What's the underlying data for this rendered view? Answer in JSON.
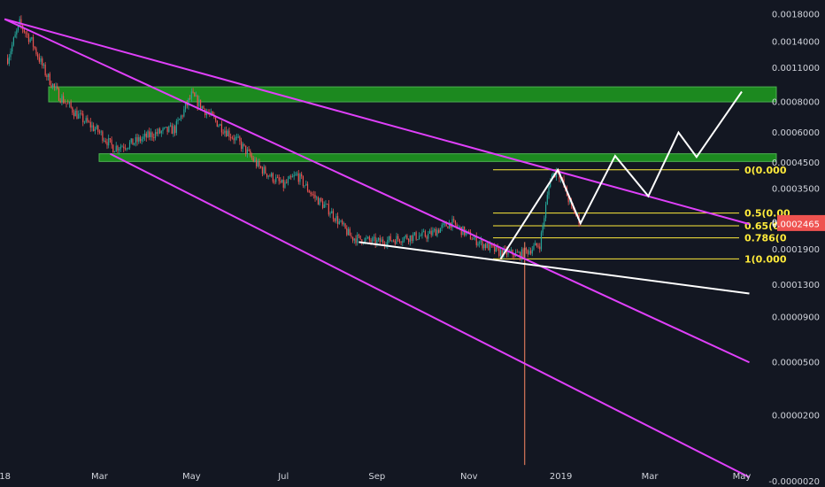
{
  "colors": {
    "background": "#131722",
    "up": "#26a69a",
    "down": "#ef5350",
    "channel": "#e040fb",
    "zone_fill": "#1f9e1f",
    "zone_edge": "#4caf50",
    "fib": "#ffeb3b",
    "projection": "#ffffff",
    "support": "#ffffff",
    "wick": "#ff8a65",
    "tag": "#ef5350",
    "axis_text": "#d1d4dc"
  },
  "chart_data": {
    "type": "candlestick",
    "scale": "log",
    "y_ticks": [
      "0.0018000",
      "0.0014000",
      "0.0011000",
      "0.0008000",
      "0.0006000",
      "0.0004500",
      "0.0003500",
      "0.0002509",
      "0.0002465",
      "0.0001900",
      "0.0001300",
      "0.0000900",
      "0.0000500",
      "0.0000200",
      "-0.0000020"
    ],
    "x_ticks": [
      {
        "label": "2018",
        "date": "2018-01-01"
      },
      {
        "label": "Mar",
        "date": "2018-03-01"
      },
      {
        "label": "May",
        "date": "2018-05-01"
      },
      {
        "label": "Jul",
        "date": "2018-07-01"
      },
      {
        "label": "Sep",
        "date": "2018-09-01"
      },
      {
        "label": "Nov",
        "date": "2018-11-01"
      },
      {
        "label": "2019",
        "date": "2019-01-01"
      },
      {
        "label": "Mar",
        "date": "2019-03-01"
      },
      {
        "label": "May",
        "date": "2019-05-01"
      }
    ],
    "price_path": [
      [
        "2017-12-30",
        0.0012
      ],
      [
        "2018-01-07",
        0.00165
      ],
      [
        "2018-01-15",
        0.0014
      ],
      [
        "2018-01-24",
        0.00105
      ],
      [
        "2018-02-02",
        0.00085
      ],
      [
        "2018-02-15",
        0.0007
      ],
      [
        "2018-03-01",
        0.0006
      ],
      [
        "2018-03-10",
        0.00052
      ],
      [
        "2018-03-22",
        0.00054
      ],
      [
        "2018-04-05",
        0.00059
      ],
      [
        "2018-04-20",
        0.00062
      ],
      [
        "2018-05-01",
        0.00085
      ],
      [
        "2018-05-10",
        0.00074
      ],
      [
        "2018-05-20",
        0.00064
      ],
      [
        "2018-06-01",
        0.00055
      ],
      [
        "2018-06-15",
        0.00043
      ],
      [
        "2018-07-01",
        0.00036
      ],
      [
        "2018-07-10",
        0.0004
      ],
      [
        "2018-07-20",
        0.00033
      ],
      [
        "2018-08-01",
        0.00028
      ],
      [
        "2018-08-15",
        0.000215
      ],
      [
        "2018-09-01",
        0.000205
      ],
      [
        "2018-09-20",
        0.000215
      ],
      [
        "2018-10-05",
        0.00022
      ],
      [
        "2018-10-20",
        0.00025
      ],
      [
        "2018-11-05",
        0.00021
      ],
      [
        "2018-11-20",
        0.000185
      ],
      [
        "2018-12-05",
        0.00018
      ],
      [
        "2018-12-18",
        0.0002
      ],
      [
        "2018-12-25",
        0.00039
      ],
      [
        "2018-12-30",
        0.00042
      ],
      [
        "2019-01-08",
        0.00029
      ],
      [
        "2019-01-14",
        0.0002509
      ]
    ],
    "resistance_zones": [
      {
        "top": 0.00092,
        "bottom": 0.0008
      },
      {
        "top": 0.00049,
        "bottom": 0.000455
      }
    ],
    "fib_levels": [
      {
        "label": "0(0.000",
        "price": 0.00042
      },
      {
        "label": "0.5(0.00",
        "price": 0.000275
      },
      {
        "label": "0.65(0.0",
        "price": 0.000242
      },
      {
        "label": "0.786(0",
        "price": 0.000214
      },
      {
        "label": "1(0.000",
        "price": 0.000172
      }
    ],
    "channel_lines": [
      {
        "from": [
          "2017-12-28",
          0.00172
        ],
        "to": [
          "2019-05-06",
          0.000246
        ]
      },
      {
        "from": [
          "2017-12-28",
          0.00172
        ],
        "to": [
          "2019-05-06",
          5e-05
        ]
      },
      {
        "from": [
          "2018-03-08",
          0.00049
        ],
        "to": [
          "2019-05-06",
          -1e-06
        ]
      }
    ],
    "support_line": {
      "from": [
        "2018-08-20",
        0.000205
      ],
      "to": [
        "2019-05-06",
        0.000118
      ]
    },
    "projection_path": [
      [
        "2018-11-22",
        0.000172
      ],
      [
        "2018-12-30",
        0.00042
      ],
      [
        "2019-01-14",
        0.000248
      ],
      [
        "2019-02-06",
        0.00048
      ],
      [
        "2019-02-28",
        0.000325
      ],
      [
        "2019-03-20",
        0.0006
      ],
      [
        "2019-04-01",
        0.000475
      ],
      [
        "2019-05-01",
        0.00088
      ]
    ],
    "spike": {
      "date": "2018-12-08",
      "high": 0.000205,
      "low": 2.3e-06
    },
    "price_tags": [
      "0.0002509",
      "0.0002465"
    ]
  }
}
